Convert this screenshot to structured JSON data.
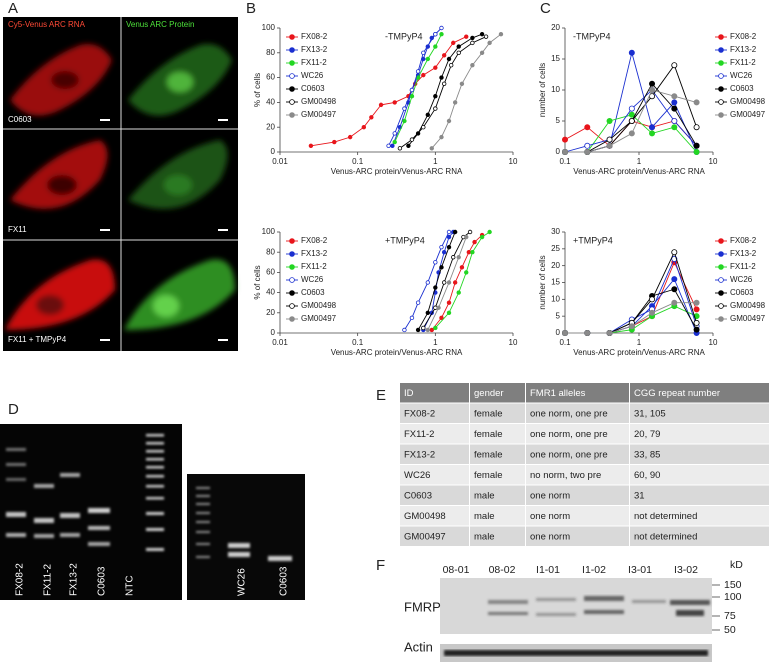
{
  "panels": [
    "A",
    "B",
    "C",
    "D",
    "E",
    "F"
  ],
  "images": {
    "columns": [
      "Cy5-Venus ARC RNA",
      "Venus ARC Protein"
    ],
    "rows": [
      "C0603",
      "FX11",
      "FX11 + TMPyP4"
    ]
  },
  "chart_data": [
    {
      "type": "line",
      "annotation": "-TMPyP4",
      "x_label": "Venus-ARC protein/Venus-ARC RNA",
      "y_label": "% of cells",
      "xscale": "log",
      "xlim": [
        0.01,
        10
      ],
      "xticks": [
        0.01,
        0.1,
        1,
        10
      ],
      "ylim": [
        0,
        100
      ],
      "yticks": [
        0,
        20,
        40,
        60,
        80,
        100
      ],
      "legend": "upper left",
      "series": [
        {
          "name": "FX08-2",
          "color": "#e8151b",
          "filled": true,
          "x": [
            0.025,
            0.05,
            0.08,
            0.12,
            0.15,
            0.2,
            0.3,
            0.45,
            0.55,
            0.7,
            1.0,
            1.3,
            1.7,
            2.5
          ],
          "values": [
            5,
            8,
            12,
            20,
            28,
            38,
            40,
            45,
            55,
            62,
            68,
            78,
            88,
            93
          ]
        },
        {
          "name": "FX13-2",
          "color": "#1a2fd0",
          "filled": true,
          "x": [
            0.28,
            0.35,
            0.45,
            0.5,
            0.6,
            0.7,
            0.8,
            0.9,
            1.0
          ],
          "values": [
            5,
            20,
            40,
            50,
            62,
            75,
            85,
            92,
            95
          ]
        },
        {
          "name": "FX11-2",
          "color": "#22d622",
          "filled": true,
          "x": [
            0.3,
            0.4,
            0.5,
            0.6,
            0.8,
            1.0,
            1.2
          ],
          "values": [
            8,
            25,
            45,
            60,
            75,
            85,
            95
          ]
        },
        {
          "name": "WC26",
          "color": "#1a2fd0",
          "filled": false,
          "x": [
            0.25,
            0.3,
            0.4,
            0.5,
            0.6,
            0.7,
            1.0,
            1.2
          ],
          "values": [
            5,
            15,
            35,
            50,
            65,
            80,
            95,
            100
          ]
        },
        {
          "name": "C0603",
          "color": "#000000",
          "filled": true,
          "x": [
            0.45,
            0.6,
            0.8,
            1.0,
            1.2,
            1.5,
            2,
            3,
            4
          ],
          "values": [
            5,
            15,
            30,
            45,
            60,
            75,
            85,
            92,
            95
          ]
        },
        {
          "name": "GM00498",
          "color": "#000000",
          "filled": false,
          "x": [
            0.35,
            0.5,
            0.7,
            1.0,
            1.3,
            1.6,
            2,
            3,
            4.5
          ],
          "values": [
            3,
            10,
            20,
            35,
            55,
            70,
            80,
            88,
            93
          ]
        },
        {
          "name": "GM00497",
          "color": "#8a8a8a",
          "filled": true,
          "x": [
            0.9,
            1.2,
            1.5,
            1.8,
            2.2,
            3,
            4,
            5,
            7
          ],
          "values": [
            3,
            12,
            25,
            40,
            55,
            70,
            80,
            88,
            95
          ]
        }
      ]
    },
    {
      "type": "line",
      "annotation": "+TMPyP4",
      "x_label": "Venus-ARC protein/Venus-ARC RNA",
      "y_label": "% of cells",
      "xscale": "log",
      "xlim": [
        0.01,
        10
      ],
      "xticks": [
        0.01,
        0.1,
        1,
        10
      ],
      "ylim": [
        0,
        100
      ],
      "yticks": [
        0,
        20,
        40,
        60,
        80,
        100
      ],
      "legend": "upper left",
      "series": [
        {
          "name": "FX08-2",
          "color": "#e8151b",
          "filled": true,
          "x": [
            0.9,
            1.2,
            1.5,
            1.8,
            2.2,
            2.7,
            3.2,
            4
          ],
          "values": [
            3,
            15,
            30,
            50,
            65,
            80,
            90,
            97
          ]
        },
        {
          "name": "FX13-2",
          "color": "#1a2fd0",
          "filled": true,
          "x": [
            0.7,
            0.9,
            1.0,
            1.1,
            1.3,
            1.5,
            1.7
          ],
          "values": [
            3,
            20,
            40,
            60,
            80,
            95,
            100
          ]
        },
        {
          "name": "FX11-2",
          "color": "#22d622",
          "filled": true,
          "x": [
            1.0,
            1.5,
            2,
            2.5,
            3,
            4,
            5
          ],
          "values": [
            5,
            20,
            40,
            60,
            80,
            95,
            100
          ]
        },
        {
          "name": "WC26",
          "color": "#1a2fd0",
          "filled": false,
          "x": [
            0.4,
            0.5,
            0.6,
            0.8,
            1.0,
            1.2,
            1.5
          ],
          "values": [
            3,
            15,
            30,
            50,
            70,
            85,
            100
          ]
        },
        {
          "name": "C0603",
          "color": "#000000",
          "filled": true,
          "x": [
            0.6,
            0.8,
            1.0,
            1.2,
            1.5,
            1.8
          ],
          "values": [
            3,
            20,
            45,
            65,
            85,
            100
          ]
        },
        {
          "name": "GM00498",
          "color": "#000000",
          "filled": false,
          "x": [
            0.7,
            1.0,
            1.3,
            1.7,
            2.3,
            2.8
          ],
          "values": [
            5,
            25,
            50,
            75,
            95,
            100
          ]
        },
        {
          "name": "GM00497",
          "color": "#8a8a8a",
          "filled": true,
          "x": [
            0.8,
            1.1,
            1.5,
            2,
            2.5
          ],
          "values": [
            3,
            25,
            50,
            75,
            95
          ]
        }
      ]
    },
    {
      "type": "line",
      "annotation": "-TMPyP4",
      "x_label": "Venus-ARC protein/Venus-ARC RNA",
      "y_label": "number of cells",
      "xscale": "log",
      "xlim": [
        0.1,
        10
      ],
      "xticks": [
        0.1,
        1,
        10
      ],
      "ylim": [
        0,
        20
      ],
      "yticks": [
        0,
        5,
        10,
        15,
        20
      ],
      "legend": "right",
      "series": [
        {
          "name": "FX08-2",
          "color": "#e8151b",
          "filled": true,
          "x": [
            0.1,
            0.2,
            0.4,
            0.8,
            1.5,
            3,
            6
          ],
          "values": [
            2,
            4,
            1,
            5,
            4,
            5,
            1
          ]
        },
        {
          "name": "FX13-2",
          "color": "#1a2fd0",
          "filled": true,
          "x": [
            0.1,
            0.2,
            0.4,
            0.8,
            1.5,
            3,
            6
          ],
          "values": [
            0,
            0,
            1,
            16,
            4,
            8,
            0
          ]
        },
        {
          "name": "FX11-2",
          "color": "#22d622",
          "filled": true,
          "x": [
            0.1,
            0.2,
            0.4,
            0.8,
            1.5,
            3,
            6
          ],
          "values": [
            0,
            0,
            5,
            6,
            3,
            4,
            0
          ]
        },
        {
          "name": "WC26",
          "color": "#1a2fd0",
          "filled": false,
          "x": [
            0.1,
            0.2,
            0.4,
            0.8,
            1.5,
            3,
            6
          ],
          "values": [
            0,
            1,
            2,
            7,
            10,
            5,
            1
          ]
        },
        {
          "name": "C0603",
          "color": "#000000",
          "filled": true,
          "x": [
            0.1,
            0.2,
            0.4,
            0.8,
            1.5,
            3,
            6
          ],
          "values": [
            0,
            0,
            1,
            5,
            11,
            7,
            1
          ]
        },
        {
          "name": "GM00498",
          "color": "#000000",
          "filled": false,
          "x": [
            0.1,
            0.2,
            0.4,
            0.8,
            1.5,
            3,
            6
          ],
          "values": [
            0,
            0,
            2,
            5,
            9,
            14,
            4
          ]
        },
        {
          "name": "GM00497",
          "color": "#8a8a8a",
          "filled": true,
          "x": [
            0.1,
            0.2,
            0.4,
            0.8,
            1.5,
            3,
            6
          ],
          "values": [
            0,
            0,
            1,
            3,
            10,
            9,
            8
          ]
        }
      ]
    },
    {
      "type": "line",
      "annotation": "+TMPyP4",
      "x_label": "Venus-ARC protein/Venus-ARC RNA",
      "y_label": "number of cells",
      "xscale": "log",
      "xlim": [
        0.1,
        10
      ],
      "xticks": [
        0.1,
        1,
        10
      ],
      "ylim": [
        0,
        30
      ],
      "yticks": [
        0,
        5,
        10,
        15,
        20,
        25,
        30
      ],
      "legend": "right",
      "series": [
        {
          "name": "FX08-2",
          "color": "#e8151b",
          "filled": true,
          "x": [
            0.1,
            0.2,
            0.4,
            0.8,
            1.5,
            3,
            6
          ],
          "values": [
            0,
            0,
            0,
            2,
            5,
            21,
            7
          ]
        },
        {
          "name": "FX13-2",
          "color": "#1a2fd0",
          "filled": true,
          "x": [
            0.1,
            0.2,
            0.4,
            0.8,
            1.5,
            3,
            6
          ],
          "values": [
            0,
            0,
            0,
            2,
            8,
            16,
            0
          ]
        },
        {
          "name": "FX11-2",
          "color": "#22d622",
          "filled": true,
          "x": [
            0.1,
            0.2,
            0.4,
            0.8,
            1.5,
            3,
            6
          ],
          "values": [
            0,
            0,
            0,
            1,
            5,
            8,
            5
          ]
        },
        {
          "name": "WC26",
          "color": "#1a2fd0",
          "filled": false,
          "x": [
            0.1,
            0.2,
            0.4,
            0.8,
            1.5,
            3,
            6
          ],
          "values": [
            0,
            0,
            0,
            4,
            7,
            22,
            2
          ]
        },
        {
          "name": "C0603",
          "color": "#000000",
          "filled": true,
          "x": [
            0.1,
            0.2,
            0.4,
            0.8,
            1.5,
            3,
            6
          ],
          "values": [
            0,
            0,
            0,
            3,
            11,
            13,
            1
          ]
        },
        {
          "name": "GM00498",
          "color": "#000000",
          "filled": false,
          "x": [
            0.1,
            0.2,
            0.4,
            0.8,
            1.5,
            3,
            6
          ],
          "values": [
            0,
            0,
            0,
            3,
            10,
            24,
            3
          ]
        },
        {
          "name": "GM00497",
          "color": "#8a8a8a",
          "filled": true,
          "x": [
            0.1,
            0.2,
            0.4,
            0.8,
            1.5,
            3,
            6
          ],
          "values": [
            0,
            0,
            0,
            2,
            6,
            9,
            9
          ]
        }
      ]
    }
  ],
  "gel": {
    "lanes": [
      "FX08-2",
      "FX11-2",
      "FX13-2",
      "C0603",
      "NTC"
    ],
    "lanes_2": [
      "WC26",
      "C0603"
    ]
  },
  "table": {
    "header": [
      "ID",
      "gender",
      "FMR1 alleles",
      "CGG repeat number"
    ],
    "rows": [
      [
        "FX08-2",
        "female",
        "one norm, one pre",
        "31, 105"
      ],
      [
        "FX11-2",
        "female",
        "one norm, one pre",
        "20, 79"
      ],
      [
        "FX13-2",
        "female",
        "one norm, one pre",
        "33, 85"
      ],
      [
        "WC26",
        "female",
        "no norm,   two pre",
        "60, 90"
      ],
      [
        "C0603",
        "male",
        "one norm",
        "31"
      ],
      [
        "GM00498",
        "male",
        "one norm",
        "not determined"
      ],
      [
        "GM00497",
        "male",
        "one norm",
        "not determined"
      ]
    ]
  },
  "blot": {
    "lanes": [
      "08-01",
      "08-02",
      "I1-01",
      "I1-02",
      "I3-01",
      "I3-02"
    ],
    "unit": "kD",
    "markers": [
      150,
      100,
      75,
      50
    ],
    "labels": [
      "FMRP",
      "Actin"
    ]
  }
}
